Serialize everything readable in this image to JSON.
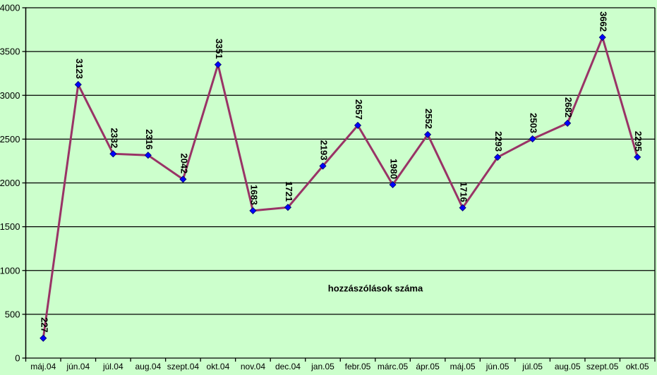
{
  "chart_data": {
    "type": "line",
    "title": "hozzászólások száma",
    "categories": [
      "máj.04",
      "jún.04",
      "júl.04",
      "aug.04",
      "szept.04",
      "okt.04",
      "nov.04",
      "dec.04",
      "jan.05",
      "febr.05",
      "márc.05",
      "ápr.05",
      "máj.05",
      "jún.05",
      "júl.05",
      "aug.05",
      "szept.05",
      "okt.05"
    ],
    "values": [
      227,
      3123,
      2332,
      2316,
      2042,
      3351,
      1683,
      1721,
      2193,
      2657,
      1980,
      2552,
      1716,
      2293,
      2503,
      2682,
      3662,
      2295
    ],
    "ylim": [
      0,
      4000
    ],
    "ytick_step": 500,
    "yticks": [
      0,
      500,
      1000,
      1500,
      2000,
      2500,
      3000,
      3500,
      4000
    ],
    "grid": "horizontal",
    "legend": "none",
    "data_labels": "rotated-90-above-points",
    "marker": {
      "shape": "diamond",
      "color": "#0000ff"
    },
    "colors": {
      "background": "#ccffcc",
      "line": "#993366",
      "marker": "#0000ff",
      "grid": "#000000",
      "axis": "#000000",
      "text": "#000000"
    }
  }
}
